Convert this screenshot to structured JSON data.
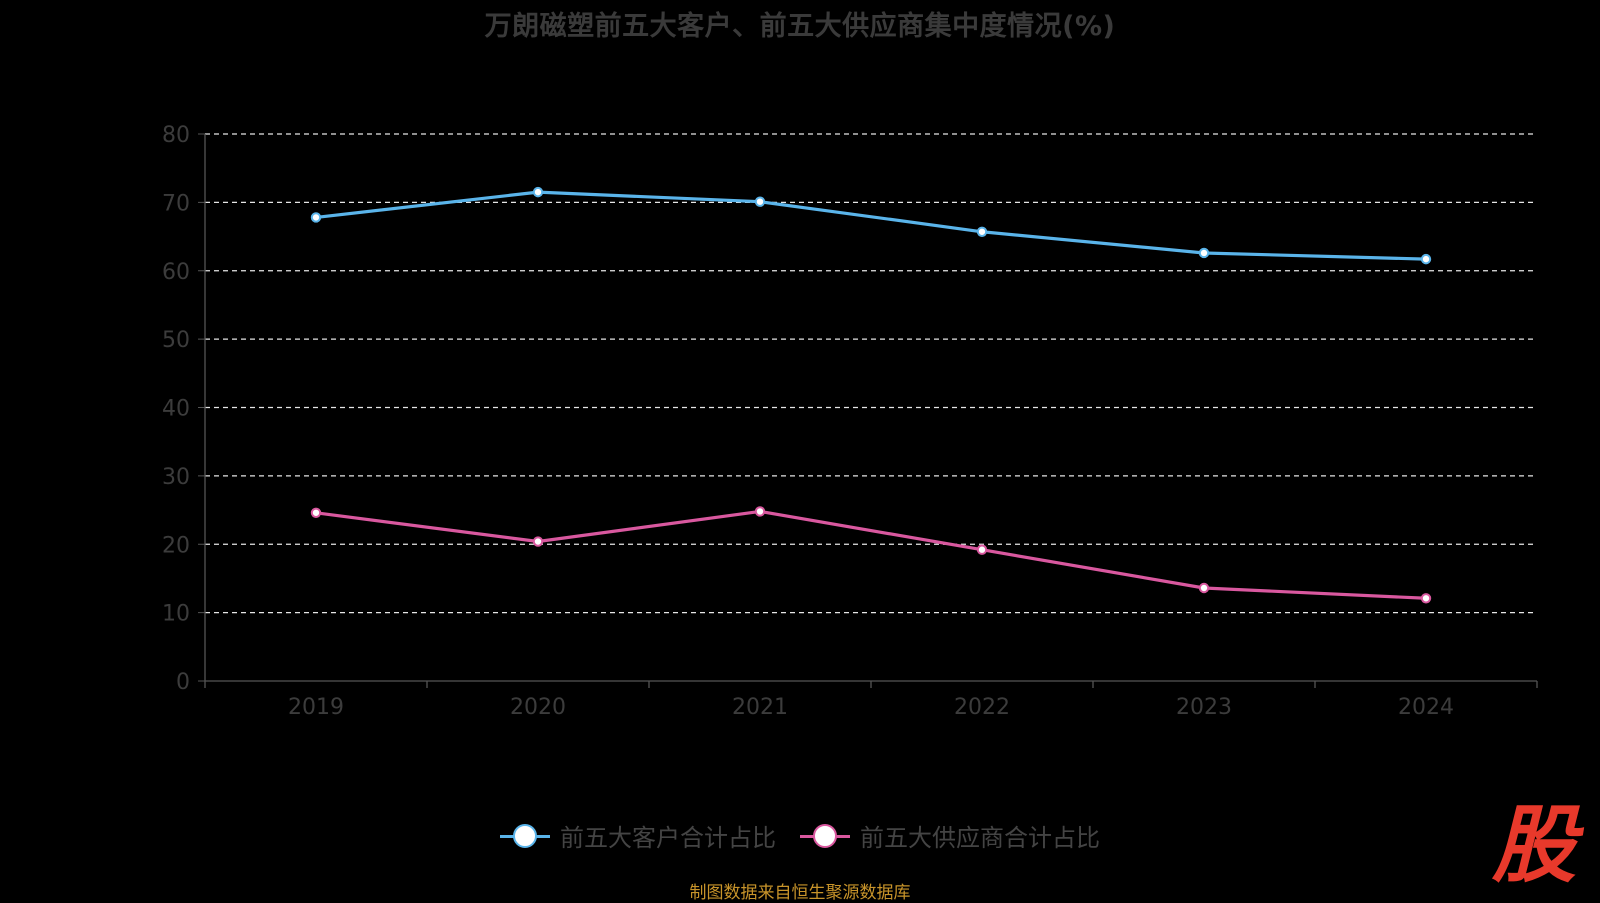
{
  "chart_data": {
    "type": "line",
    "title": "万朗磁塑前五大客户、前五大供应商集中度情况(%)",
    "categories": [
      "2019",
      "2020",
      "2021",
      "2022",
      "2023",
      "2024"
    ],
    "ylim": [
      0,
      80
    ],
    "yticks": [
      0,
      10,
      20,
      30,
      40,
      50,
      60,
      70,
      80
    ],
    "grid": true,
    "legend_position": "bottom",
    "series": [
      {
        "name": "前五大客户合计占比",
        "color": "#5ab4ea",
        "values": [
          67.8,
          71.5,
          70.1,
          65.7,
          62.6,
          61.7
        ]
      },
      {
        "name": "前五大供应商合计占比",
        "color": "#d9589f",
        "values": [
          24.6,
          20.4,
          24.8,
          19.2,
          13.6,
          12.1
        ]
      }
    ]
  },
  "source_note": "制图数据来自恒生聚源数据库",
  "watermark_text": "股"
}
